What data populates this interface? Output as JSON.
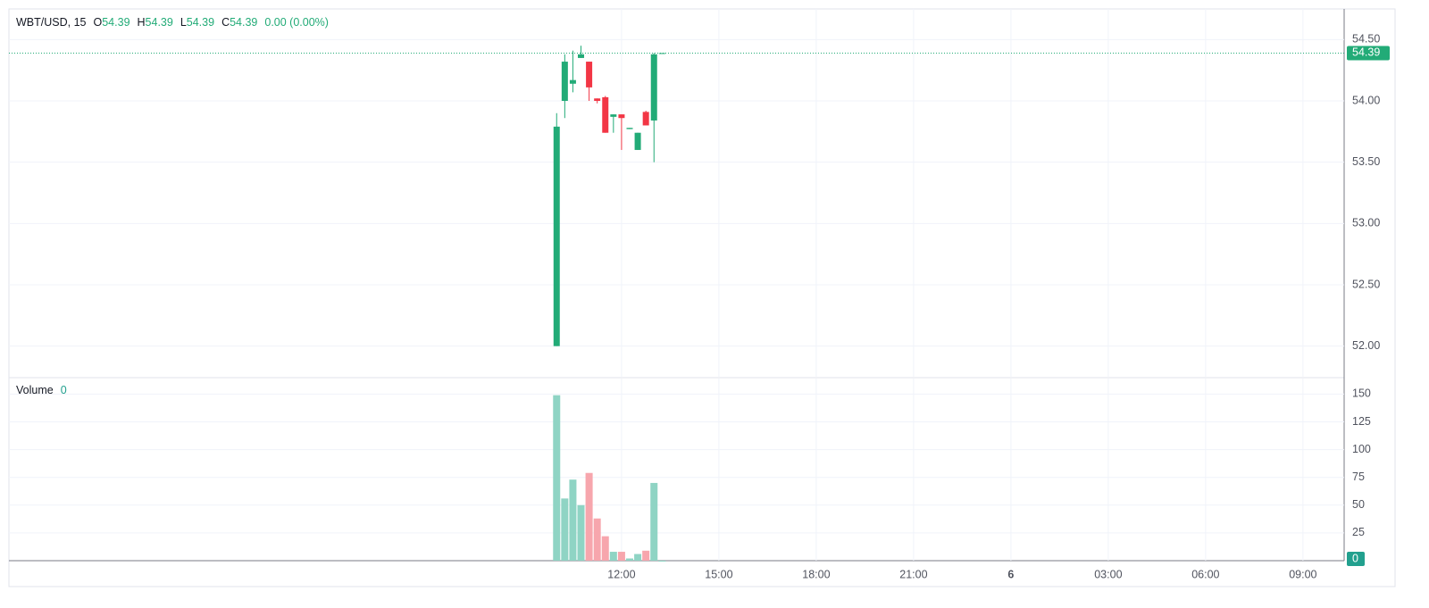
{
  "chart_data": [
    {
      "type": "candlestick",
      "title": "WBT/USD, 15",
      "legend_labels": [
        "O",
        "H",
        "L",
        "C"
      ],
      "legend_values": [
        54.39,
        54.39,
        54.39,
        54.39
      ],
      "change": "0.00 (0.00%)",
      "x": [
        10,
        10.25,
        10.5,
        10.75,
        11,
        11.25,
        11.5,
        11.75,
        12,
        12.25,
        12.5,
        12.75,
        13,
        13.25
      ],
      "open": [
        52.0,
        54.0,
        54.14,
        54.35,
        54.32,
        54.02,
        54.03,
        53.87,
        53.89,
        53.77,
        53.6,
        53.91,
        53.84,
        54.39
      ],
      "high": [
        53.9,
        54.38,
        54.41,
        54.45,
        54.32,
        54.02,
        54.04,
        53.89,
        53.89,
        53.78,
        53.74,
        53.92,
        54.39,
        54.39
      ],
      "low": [
        52.0,
        53.86,
        54.07,
        54.35,
        54.0,
        53.98,
        53.74,
        53.74,
        53.6,
        53.77,
        53.6,
        53.8,
        53.5,
        54.39
      ],
      "close": [
        53.79,
        54.32,
        54.17,
        54.38,
        54.11,
        54.0,
        53.74,
        53.89,
        53.86,
        53.78,
        53.74,
        53.8,
        54.38,
        54.39
      ],
      "up_color": "#22ab77",
      "down_color": "#f23645",
      "xlim": [
        -6.88,
        34.27
      ],
      "xticks": [
        {
          "value": 12,
          "label": "12:00"
        },
        {
          "value": 15,
          "label": "15:00"
        },
        {
          "value": 18,
          "label": "18:00"
        },
        {
          "value": 21,
          "label": "21:00"
        },
        {
          "value": 24,
          "label": "6"
        },
        {
          "value": 27,
          "label": "03:00"
        },
        {
          "value": 30,
          "label": "06:00"
        },
        {
          "value": 33,
          "label": "09:00"
        }
      ],
      "ylim": [
        51.75,
        54.75
      ],
      "yticks": [
        {
          "value": 52,
          "label": "52.00"
        },
        {
          "value": 52.5,
          "label": "52.50"
        },
        {
          "value": 53,
          "label": "53.00"
        },
        {
          "value": 53.5,
          "label": "53.50"
        },
        {
          "value": 54,
          "label": "54.00"
        },
        {
          "value": 54.5,
          "label": "54.50"
        }
      ],
      "grid": true
    },
    {
      "type": "bar",
      "title": "Volume",
      "x": [
        10,
        10.25,
        10.5,
        10.75,
        11,
        11.25,
        11.5,
        11.75,
        12,
        12.25,
        12.5,
        12.75,
        13,
        13.25
      ],
      "values": [
        149,
        56,
        73,
        50,
        79,
        38,
        22,
        8,
        8,
        2,
        6,
        9,
        70,
        0
      ],
      "colors": [
        "#8fd4c4",
        "#8fd4c4",
        "#8fd4c4",
        "#8fd4c4",
        "#f7a6ad",
        "#f7a6ad",
        "#f7a6ad",
        "#8fd4c4",
        "#f7a6ad",
        "#8fd4c4",
        "#8fd4c4",
        "#f7a6ad",
        "#8fd4c4",
        "#8fd4c4"
      ],
      "xlim": [
        -6.88,
        34.27
      ],
      "ylim": [
        0,
        164
      ],
      "yticks": [
        25,
        50,
        75,
        100,
        125,
        150
      ],
      "grid": true
    }
  ]
}
